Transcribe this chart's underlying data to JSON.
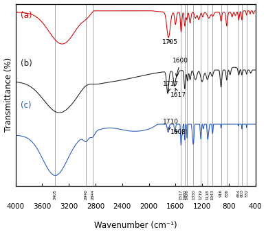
{
  "title": "",
  "xlabel": "Wavenumber (cm⁻¹)",
  "ylabel": "Transmittance (%)",
  "xlim": [
    4000,
    400
  ],
  "background_color": "#ffffff",
  "colors": {
    "a": "#cc0000",
    "b": "#1a1a1a",
    "c": "#2255bb"
  },
  "labels": {
    "a": "(a)",
    "b": "(b)",
    "c": "(c)"
  },
  "vlines": [
    3405,
    2940,
    2844,
    1517,
    1460,
    1426,
    1330,
    1219,
    1118,
    1043,
    916,
    830,
    654,
    603,
    532
  ],
  "vline_labels": [
    "3405",
    "2940",
    "2844",
    "1517",
    "1460",
    "1426",
    "1330",
    "1219",
    "1118",
    "1043",
    "916",
    "830",
    "654",
    "603",
    "532"
  ],
  "xticks": [
    4000,
    3600,
    3200,
    2800,
    2400,
    2000,
    1600,
    1200,
    800,
    400
  ]
}
